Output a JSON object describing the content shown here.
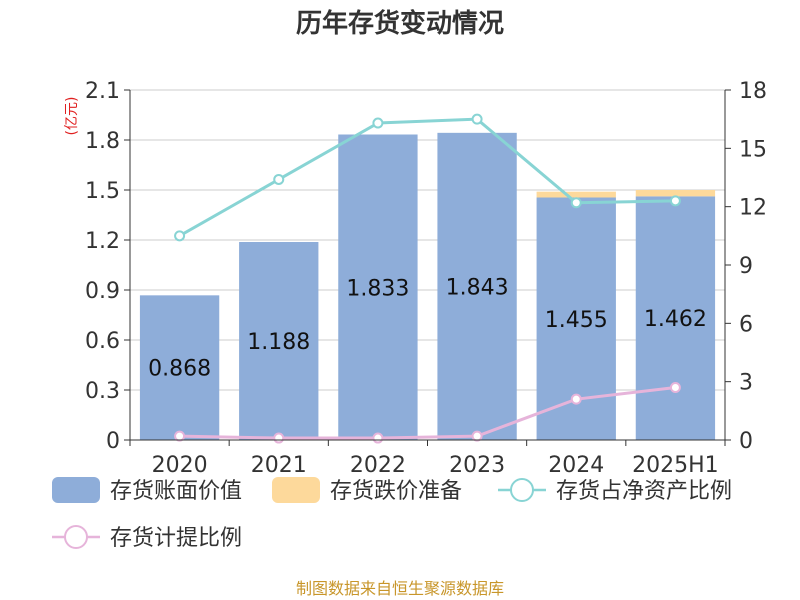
{
  "chart_data": {
    "type": "bar",
    "title": "历年存货变动情况",
    "unit_left": "(亿元)",
    "categories": [
      "2020",
      "2021",
      "2022",
      "2023",
      "2024",
      "2025H1"
    ],
    "ylim_left": [
      0,
      2.1
    ],
    "yticks_left": [
      "0",
      "0.3",
      "0.6",
      "0.9",
      "1.2",
      "1.5",
      "1.8",
      "2.1"
    ],
    "ylim_right": [
      0,
      18
    ],
    "yticks_right": [
      "0",
      "3",
      "6",
      "9",
      "12",
      "15",
      "18"
    ],
    "grid": true,
    "legend_position": "bottom",
    "series": [
      {
        "name": "存货账面价值",
        "kind": "bar",
        "axis": "left",
        "color": "#8eadd9",
        "values": [
          0.868,
          1.188,
          1.833,
          1.843,
          1.455,
          1.462
        ],
        "labels": [
          "0.868",
          "1.188",
          "1.833",
          "1.843",
          "1.455",
          "1.462"
        ]
      },
      {
        "name": "存货跌价准备",
        "kind": "bar",
        "axis": "left",
        "stacked": true,
        "color": "#fdd99b",
        "values": [
          0.0,
          0.0,
          0.0,
          0.0,
          0.035,
          0.038
        ]
      },
      {
        "name": "存货占净资产比例",
        "kind": "line",
        "axis": "right",
        "color": "#88d4d4",
        "values": [
          10.5,
          13.4,
          16.3,
          16.5,
          12.2,
          12.3
        ]
      },
      {
        "name": "存货计提比例",
        "kind": "line",
        "axis": "right",
        "color": "#e6b4da",
        "values": [
          0.2,
          0.1,
          0.1,
          0.2,
          2.1,
          2.7
        ]
      }
    ]
  },
  "source_note": "制图数据来自恒生聚源数据库"
}
